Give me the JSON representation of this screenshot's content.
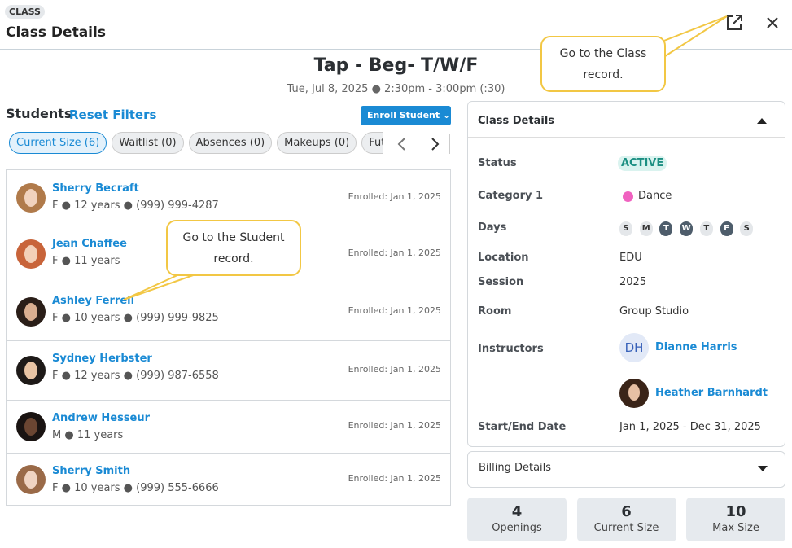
{
  "header": {
    "badge": "CLASS",
    "title": "Class Details"
  },
  "class": {
    "name": "Tap - Beg- T/W/F",
    "schedule": "Tue, Jul 8, 2025 ● 2:30pm - 3:00pm (:30)"
  },
  "students_panel": {
    "title": "Students",
    "reset": "Reset Filters",
    "enroll": "Enroll Student",
    "tabs": [
      "Current Size (6)",
      "Waitlist (0)",
      "Absences (0)",
      "Makeups (0)",
      "Futu"
    ]
  },
  "students": [
    {
      "name": "Sherry Becraft",
      "details": "F ● 12 years ● (999) 999-4287",
      "enrolled": "Enrolled: Jan 1, 2025"
    },
    {
      "name": "Jean Chaffee",
      "details": "F ● 11 years",
      "enrolled": "Enrolled: Jan 1, 2025"
    },
    {
      "name": "Ashley Ferrell",
      "details": "F ● 10 years ● (999) 999-9825",
      "enrolled": "Enrolled: Jan 1, 2025"
    },
    {
      "name": "Sydney Herbster",
      "details": "F ● 12 years ● (999) 987-6558",
      "enrolled": "Enrolled: Jan 1, 2025"
    },
    {
      "name": "Andrew Hesseur",
      "details": "M ● 11 years",
      "enrolled": "Enrolled: Jan 1, 2025"
    },
    {
      "name": "Sherry Smith",
      "details": "F ● 10 years ● (999) 555-6666",
      "enrolled": "Enrolled: Jan 1, 2025"
    }
  ],
  "details": {
    "title": "Class Details",
    "status": {
      "label": "Status",
      "value": "ACTIVE"
    },
    "category": {
      "label": "Category 1",
      "value": "Dance"
    },
    "days": {
      "label": "Days",
      "items": [
        {
          "label": "S",
          "on": false
        },
        {
          "label": "M",
          "on": false
        },
        {
          "label": "T",
          "on": true
        },
        {
          "label": "W",
          "on": true
        },
        {
          "label": "T",
          "on": false
        },
        {
          "label": "F",
          "on": true
        },
        {
          "label": "S",
          "on": false
        }
      ]
    },
    "location": {
      "label": "Location",
      "value": "EDU"
    },
    "session": {
      "label": "Session",
      "value": "2025"
    },
    "room": {
      "label": "Room",
      "value": "Group Studio"
    },
    "instructors": {
      "label": "Instructors",
      "items": [
        {
          "initials": "DH",
          "name": "Dianne Harris"
        },
        {
          "name": "Heather Barnhardt"
        }
      ]
    },
    "dates": {
      "label": "Start/End Date",
      "value": "Jan 1, 2025 - Dec 31, 2025"
    }
  },
  "billing": {
    "title": "Billing Details"
  },
  "stats": [
    {
      "value": "4",
      "label": "Openings"
    },
    {
      "value": "6",
      "label": "Current Size"
    },
    {
      "value": "10",
      "label": "Max Size"
    }
  ],
  "callouts": {
    "class": "Go to the Class record.",
    "student": "Go to the Student record."
  }
}
